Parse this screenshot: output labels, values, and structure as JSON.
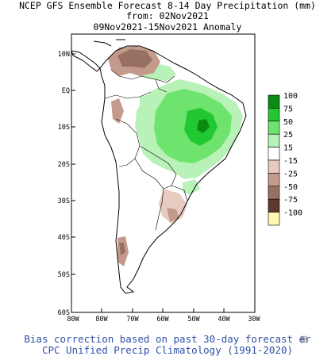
{
  "header": {
    "line1": "NCEP GFS Ensemble Forecast 8-14 Day Precipitation (mm)",
    "line2": "from: 02Nov2021",
    "line3": "09Nov2021-15Nov2021 Anomaly"
  },
  "map": {
    "region": "South America",
    "lat_ticks": [
      "10N",
      "EQ",
      "10S",
      "20S",
      "30S",
      "40S",
      "50S",
      "60S"
    ],
    "lon_ticks": [
      "80W",
      "80W",
      "70W",
      "60W",
      "50W",
      "40W",
      "30W"
    ],
    "anomaly_regions": [
      {
        "area": "northern Venezuela / Colombia",
        "category": "-50"
      },
      {
        "area": "Amazon / central Brazil",
        "category": "+25 to +100"
      },
      {
        "area": "Bolivia / Paraguay",
        "category": "+15"
      },
      {
        "area": "northeast Argentina / Uruguay",
        "category": "-25"
      },
      {
        "area": "southern Chile",
        "category": "-50"
      },
      {
        "area": "Peru coast",
        "category": "-25"
      }
    ]
  },
  "legend": {
    "entries": [
      {
        "label": "100",
        "color": "#0a8c12"
      },
      {
        "label": "75",
        "color": "#22c832"
      },
      {
        "label": "50",
        "color": "#6ee46e"
      },
      {
        "label": "25",
        "color": "#b8f2b8"
      },
      {
        "label": "15",
        "color": "#ffffff"
      },
      {
        "label": "-15",
        "color": "#e8cbc0"
      },
      {
        "label": "-25",
        "color": "#c49a8c"
      },
      {
        "label": "-50",
        "color": "#987062"
      },
      {
        "label": "-75",
        "color": "#5e3a2c"
      },
      {
        "label": "-100",
        "color": "#fff8b0"
      }
    ]
  },
  "footer": {
    "line1": "Bias correction based on past 30-day forecast er",
    "line2": "CPC Unified Precip Climatology (1991-2020)",
    "watermark": "新"
  }
}
